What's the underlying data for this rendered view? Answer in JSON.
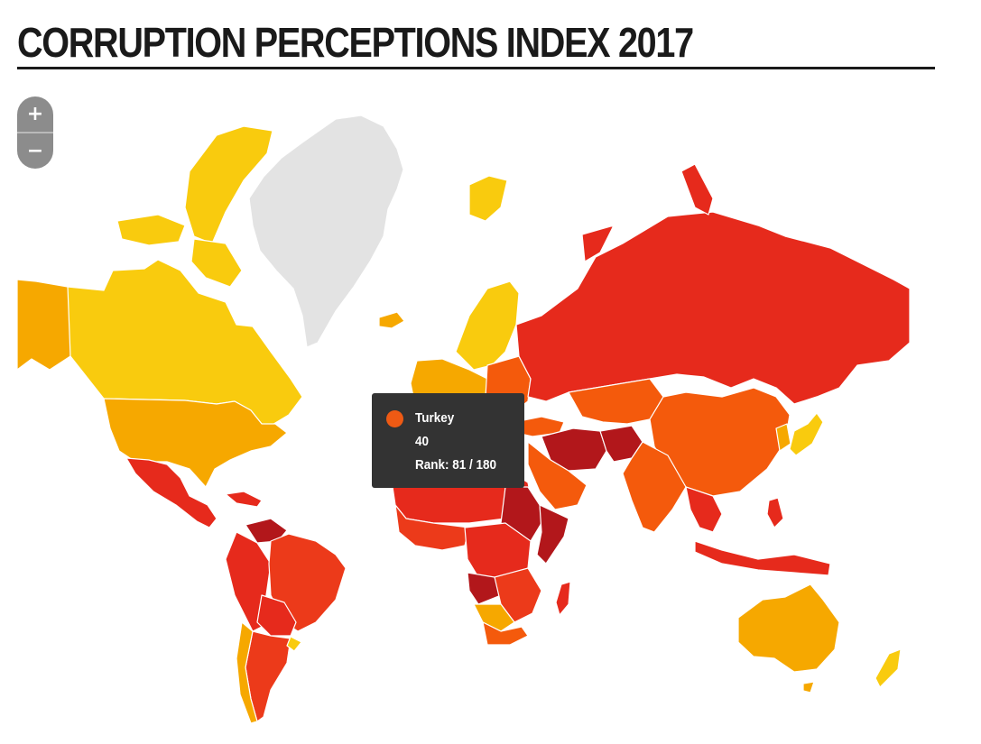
{
  "header": {
    "title": "CORRUPTION PERCEPTIONS INDEX 2017"
  },
  "zoom": {
    "in_label": "+",
    "out_label": "−"
  },
  "tooltip": {
    "country": "Turkey",
    "score": "40",
    "rank_text": "Rank: 81 / 180",
    "marker_color": "#ee5a14"
  },
  "colors": {
    "very_clean": "#f9cb0e",
    "clean": "#f6a800",
    "mid": "#f45a0c",
    "corrupt": "#e62a1c",
    "very_corrupt": "#b2171b",
    "no_data": "#e3e3e3"
  }
}
